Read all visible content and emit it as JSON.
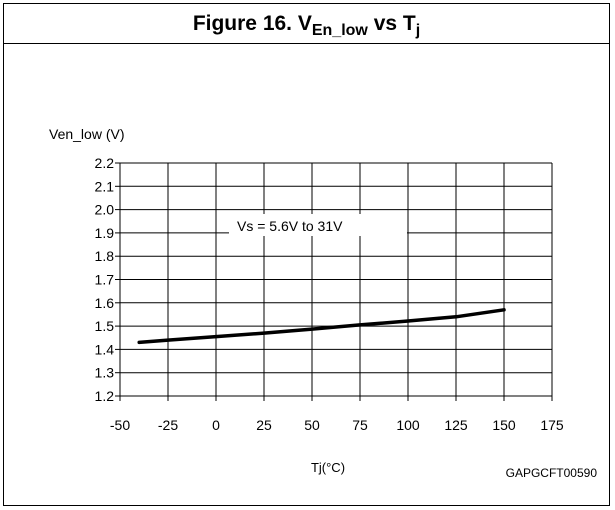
{
  "figure": {
    "label": "Figure 16. V",
    "symbol_sub": "En_low",
    "vs_text": " vs T",
    "vs_sub": "j",
    "code": "GAPGCFT00590"
  },
  "chart_data": {
    "type": "line",
    "title": "Figure 16. VEn_low vs Tj",
    "ylabel": "Ven_low (V)",
    "xlabel": "Tj(°C)",
    "xlim": [
      -50,
      175
    ],
    "ylim": [
      1.2,
      2.2
    ],
    "x_ticks": [
      -50,
      -25,
      0,
      25,
      50,
      75,
      100,
      125,
      150,
      175
    ],
    "x_tick_labels": [
      "-50",
      "-25",
      "0",
      "25",
      "50",
      "75",
      "100",
      "125",
      "150",
      "175"
    ],
    "y_ticks": [
      1.2,
      1.3,
      1.4,
      1.5,
      1.6,
      1.7,
      1.8,
      1.9,
      2.0,
      2.1,
      2.2
    ],
    "y_tick_labels": [
      "1.2",
      "1.3",
      "1.4",
      "1.5",
      "1.6",
      "1.7",
      "1.8",
      "1.9",
      "2.0",
      "2.1",
      "2.2"
    ],
    "grid": true,
    "annotation": "Vs = 5.6V to 31V",
    "series": [
      {
        "x": [
          -40,
          -25,
          0,
          25,
          50,
          75,
          100,
          125,
          150
        ],
        "values": [
          1.43,
          1.44,
          1.455,
          1.47,
          1.487,
          1.505,
          1.522,
          1.54,
          1.57
        ],
        "color": "#000000"
      }
    ]
  }
}
